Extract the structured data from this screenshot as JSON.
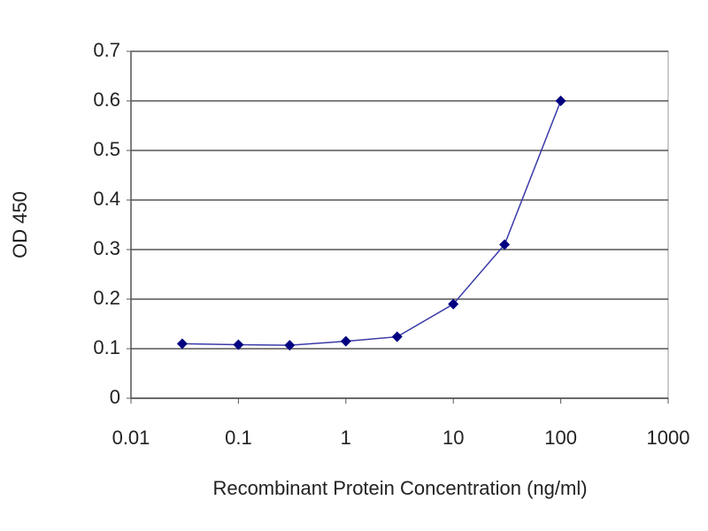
{
  "chart_data": {
    "type": "line",
    "x_label": "Recombinant Protein Concentration (ng/ml)",
    "y_label": "OD 450",
    "x": [
      0.03,
      0.1,
      0.3,
      1,
      3,
      10,
      30,
      100
    ],
    "values": [
      0.11,
      0.108,
      0.107,
      0.115,
      0.124,
      0.19,
      0.31,
      0.6
    ],
    "color": "#3a3aa8",
    "marker_color": "#000080",
    "xscale": "log",
    "xlim": [
      0.01,
      1000
    ],
    "xticks": [
      0.01,
      0.1,
      1,
      10,
      100,
      1000
    ],
    "ylim": [
      0,
      0.7
    ],
    "yticks": [
      0,
      0.1,
      0.2,
      0.3,
      0.4,
      0.5,
      0.6,
      0.7
    ],
    "grid": "y"
  }
}
